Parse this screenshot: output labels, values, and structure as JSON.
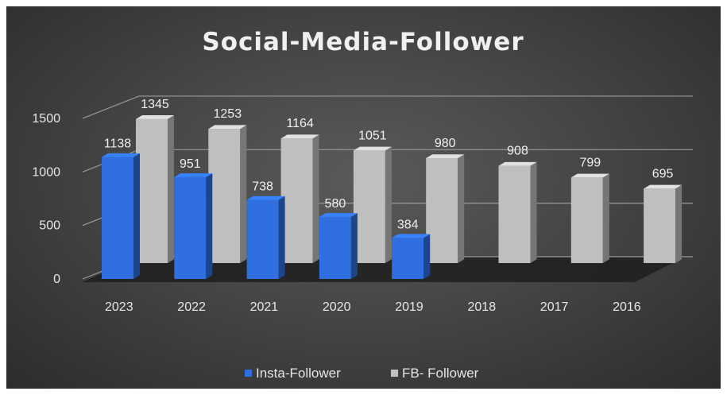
{
  "chart_data": {
    "type": "bar",
    "title": "Social-Media-Follower",
    "categories": [
      "2023",
      "2022",
      "2021",
      "2020",
      "2019",
      "2018",
      "2017",
      "2016"
    ],
    "series": [
      {
        "name": "Insta-Follower",
        "values": [
          1138,
          951,
          738,
          580,
          384,
          null,
          null,
          null
        ],
        "color": "#2f6fe0"
      },
      {
        "name": "FB- Follower",
        "values": [
          1345,
          1253,
          1164,
          1051,
          980,
          908,
          799,
          695
        ],
        "color": "#bfbfbf"
      }
    ],
    "y_ticks": [
      "0",
      "500",
      "1000",
      "1500"
    ],
    "ylim": [
      0,
      1500
    ],
    "grid": true,
    "legend_position": "bottom",
    "style": "3d-column"
  }
}
